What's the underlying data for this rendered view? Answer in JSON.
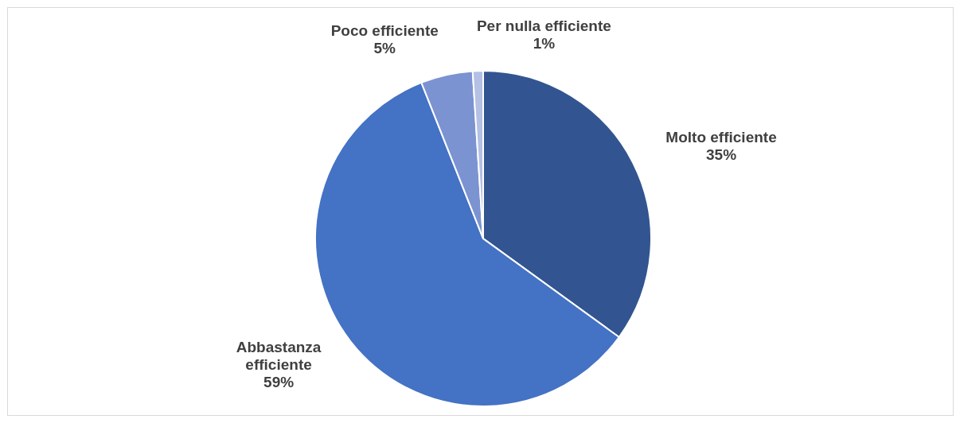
{
  "chart_data": {
    "type": "pie",
    "categories": [
      "Molto efficiente",
      "Abbastanza efficiente",
      "Poco efficiente",
      "Per nulla efficiente"
    ],
    "values": [
      35,
      59,
      5,
      1
    ],
    "colors": [
      "#325591",
      "#4472c4",
      "#7b93d1",
      "#b4c0e4"
    ],
    "value_labels": [
      "35%",
      "59%",
      "5%",
      "1%"
    ]
  }
}
